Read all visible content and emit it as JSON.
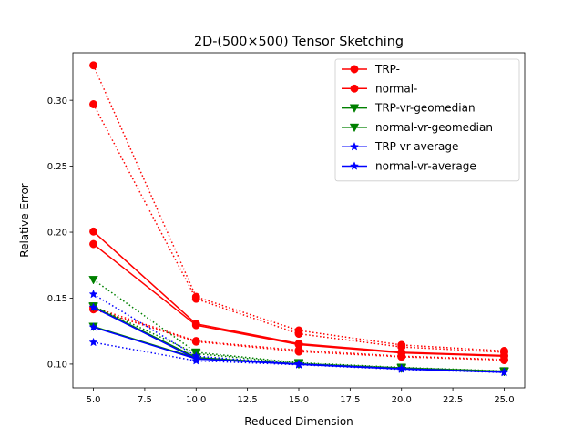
{
  "chart_data": {
    "type": "line",
    "title": "2D-(500×500) Tensor Sketching",
    "xlabel": "Reduced Dimension",
    "ylabel": "Relative Error",
    "xlim": [
      4.0,
      26.0
    ],
    "ylim": [
      0.082,
      0.336
    ],
    "x_ticks": [
      5.0,
      7.5,
      10.0,
      12.5,
      15.0,
      17.5,
      20.0,
      22.5,
      25.0
    ],
    "x_tick_labels": [
      "5.0",
      "7.5",
      "10.0",
      "12.5",
      "15.0",
      "17.5",
      "20.0",
      "22.5",
      "25.0"
    ],
    "y_ticks": [
      0.1,
      0.15,
      0.2,
      0.25,
      0.3
    ],
    "y_tick_labels": [
      "0.10",
      "0.15",
      "0.20",
      "0.25",
      "0.30"
    ],
    "grid": false,
    "legend_placement": "top-right",
    "x": [
      5,
      10,
      15,
      20,
      25
    ],
    "series": [
      {
        "name": "TRP-",
        "legend": true,
        "color": "#ff0000",
        "marker": "circle",
        "linestyle": "solid",
        "values": [
          0.2005,
          0.1305,
          0.1155,
          0.109,
          0.1065
        ]
      },
      {
        "name": "normal-",
        "legend": true,
        "color": "#ff0000",
        "marker": "circle",
        "linestyle": "solid",
        "values": [
          0.191,
          0.1295,
          0.1148,
          0.1085,
          0.106
        ]
      },
      {
        "name": "",
        "legend": false,
        "color": "#ff0000",
        "marker": "circle",
        "linestyle": "dotted",
        "values": [
          0.3265,
          0.151,
          0.1255,
          0.1145,
          0.11
        ]
      },
      {
        "name": "",
        "legend": false,
        "color": "#ff0000",
        "marker": "circle",
        "linestyle": "dotted",
        "values": [
          0.297,
          0.1495,
          0.123,
          0.113,
          0.109
        ]
      },
      {
        "name": "",
        "legend": false,
        "color": "#ff0000",
        "marker": "circle",
        "linestyle": "dotted",
        "values": [
          0.143,
          0.1175,
          0.1105,
          0.106,
          0.1035
        ]
      },
      {
        "name": "",
        "legend": false,
        "color": "#ff0000",
        "marker": "circle",
        "linestyle": "dotted",
        "values": [
          0.1415,
          0.117,
          0.1095,
          0.1055,
          0.103
        ]
      },
      {
        "name": "TRP-vr-geomedian",
        "legend": true,
        "color": "#008000",
        "marker": "triangle-down",
        "linestyle": "solid",
        "values": [
          0.1435,
          0.105,
          0.1,
          0.097,
          0.0945
        ]
      },
      {
        "name": "normal-vr-geomedian",
        "legend": true,
        "color": "#008000",
        "marker": "triangle-down",
        "linestyle": "solid",
        "values": [
          0.1285,
          0.1045,
          0.1,
          0.0968,
          0.0943
        ]
      },
      {
        "name": "",
        "legend": false,
        "color": "#008000",
        "marker": "triangle-down",
        "linestyle": "dotted",
        "values": [
          0.164,
          0.109,
          0.101,
          0.0975,
          0.0948
        ]
      },
      {
        "name": "",
        "legend": false,
        "color": "#008000",
        "marker": "triangle-down",
        "linestyle": "dotted",
        "values": [
          0.144,
          0.108,
          0.1005,
          0.0972,
          0.0946
        ]
      },
      {
        "name": "TRP-vr-average",
        "legend": true,
        "color": "#0000ff",
        "marker": "star",
        "linestyle": "solid",
        "values": [
          0.143,
          0.104,
          0.1,
          0.0965,
          0.094
        ]
      },
      {
        "name": "normal-vr-average",
        "legend": true,
        "color": "#0000ff",
        "marker": "star",
        "linestyle": "solid",
        "values": [
          0.128,
          0.104,
          0.0998,
          0.0963,
          0.0938
        ]
      },
      {
        "name": "",
        "legend": false,
        "color": "#0000ff",
        "marker": "star",
        "linestyle": "dotted",
        "values": [
          0.153,
          0.106,
          0.1,
          0.0965,
          0.094
        ]
      },
      {
        "name": "",
        "legend": false,
        "color": "#0000ff",
        "marker": "star",
        "linestyle": "dotted",
        "values": [
          0.1165,
          0.1025,
          0.0995,
          0.096,
          0.0936
        ]
      }
    ]
  }
}
